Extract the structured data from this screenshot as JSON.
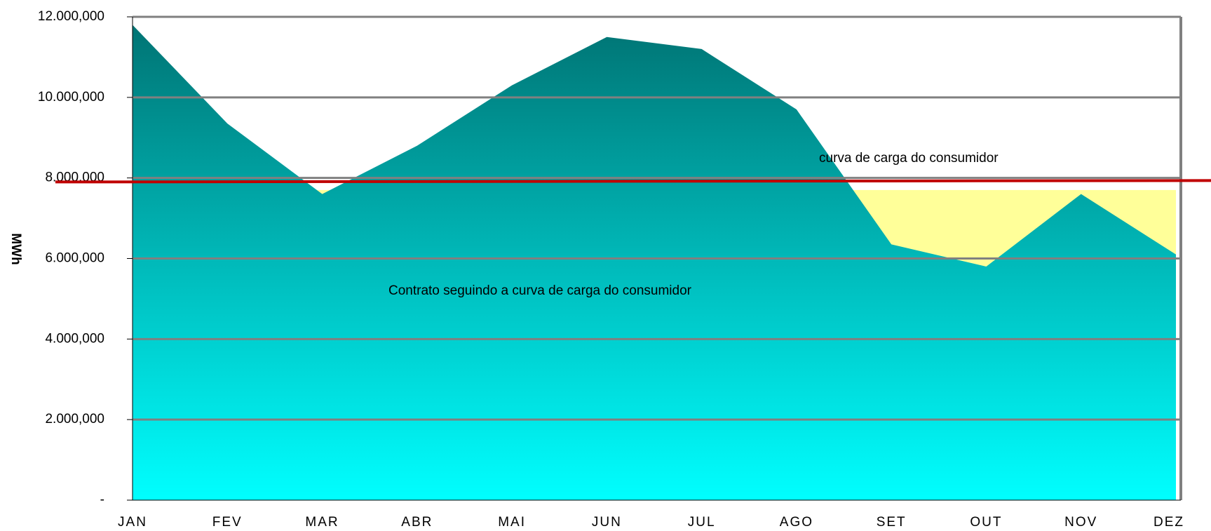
{
  "chart_data": {
    "type": "area",
    "y_label": "MWh",
    "categories": [
      "JAN",
      "FEV",
      "MAR",
      "ABR",
      "MAI",
      "JUN",
      "JUL",
      "AGO",
      "SET",
      "OUT",
      "NOV",
      "DEZ"
    ],
    "series": [
      {
        "color": "#ffff99",
        "values": [
          7700000,
          7700000,
          7700000,
          7700000,
          7700000,
          7700000,
          7700000,
          7700000,
          7700000,
          7700000,
          7700000,
          7700000
        ]
      },
      {
        "color": [
          "#007474",
          "#00ffff"
        ],
        "values": [
          11800000,
          9350000,
          7600000,
          8800000,
          10300000,
          11500000,
          11200000,
          9700000,
          6350000,
          5800000,
          7600000,
          6100000
        ]
      }
    ],
    "reference_line": {
      "value": 7900000,
      "color": "#c00000"
    },
    "annotations": [
      {
        "text": "curva de carga do consumidor"
      },
      {
        "text": "Contrato seguindo a curva de carga do consumidor"
      }
    ],
    "ylim": [
      0,
      12000000
    ],
    "yticks": [
      {
        "value": 0,
        "label": "-"
      },
      {
        "value": 2000000,
        "label": "2.000,000"
      },
      {
        "value": 4000000,
        "label": "4.000,000"
      },
      {
        "value": 6000000,
        "label": "6.000,000"
      },
      {
        "value": 8000000,
        "label": "8.000,000"
      },
      {
        "value": 10000000,
        "label": "10.000,000"
      },
      {
        "value": 12000000,
        "label": "12.000,000"
      }
    ],
    "grid": true
  }
}
